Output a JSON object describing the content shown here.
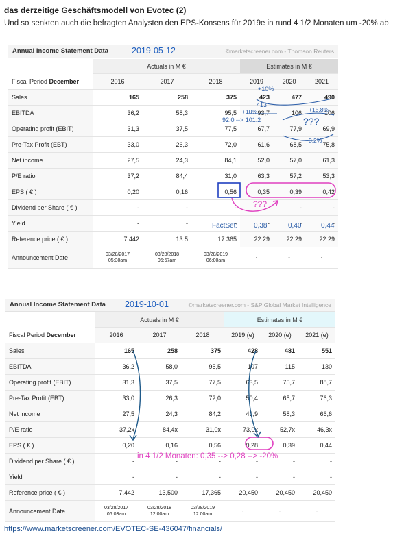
{
  "heading": "das derzeitige Geschäftsmodell von Evotec (2)",
  "intro": "Und so senkten auch die befragten Analysten den EPS-Konsens für 2019e in rund 4 1/2 Monaten um -20% ab",
  "footer_link": "https://www.marketscreener.com/EVOTEC-SE-436047/financials/",
  "panel1": {
    "title": "Annual Income Statement Data",
    "date": "2019-05-12",
    "source": "©marketscreener.com - Thomson Reuters",
    "actuals_header": "Actuals in M €",
    "estimates_header": "Estimates in M €",
    "fiscal_label": "Fiscal Period ",
    "fiscal_bold": "December",
    "years": [
      "2016",
      "2017",
      "2018",
      "2019",
      "2020",
      "2021"
    ],
    "rows": [
      {
        "label": "Sales",
        "values": [
          "165",
          "258",
          "375",
          "423",
          "477",
          "490"
        ]
      },
      {
        "label": "EBITDA",
        "values": [
          "36,2",
          "58,3",
          "95,5",
          "93,7",
          "106",
          "106"
        ]
      },
      {
        "label": "Operating profit (EBIT)",
        "values": [
          "31,3",
          "37,5",
          "77,5",
          "67,7",
          "77,9",
          "69,9"
        ]
      },
      {
        "label": "Pre-Tax Profit (EBT)",
        "values": [
          "33,0",
          "26,3",
          "72,0",
          "61,6",
          "68,5",
          "75,8"
        ]
      },
      {
        "label": "Net income",
        "values": [
          "27,5",
          "24,3",
          "84,1",
          "52,0",
          "57,0",
          "61,3"
        ]
      },
      {
        "label": "P/E ratio",
        "values": [
          "37,2",
          "84,4",
          "31,0",
          "63,3",
          "57,2",
          "53,3"
        ]
      },
      {
        "label": "EPS ( € )",
        "values": [
          "0,20",
          "0,16",
          "0,56",
          "0,35",
          "0,39",
          "0,42"
        ]
      },
      {
        "label": "Dividend per Share ( € )",
        "values": [
          "-",
          "-",
          "-",
          "-",
          "-",
          "-"
        ]
      },
      {
        "label": "Yield",
        "values": [
          "-",
          "-",
          "-",
          "-",
          "-",
          "-"
        ]
      },
      {
        "label": "Reference price ( € )",
        "values": [
          "7.442",
          "13.5",
          "17.365",
          "22.29",
          "22.29",
          "22.29"
        ]
      }
    ],
    "announcement_label": "Announcement Date",
    "announcement": [
      {
        "d": "03/28/2017",
        "t": "05:30am"
      },
      {
        "d": "03/28/2018",
        "t": "05:57am"
      },
      {
        "d": "03/28/2019",
        "t": "06:00am"
      },
      {
        "d": "-",
        "t": ""
      },
      {
        "d": "-",
        "t": ""
      },
      {
        "d": "-",
        "t": ""
      }
    ],
    "annotations": {
      "sales_pct": "+10%",
      "sales_alt": "413",
      "ebitda_pct": "+10%",
      "ebitda_change": "92.0 --> 101.2",
      "ebitda_pct_2021": "+15.8%",
      "ebit_question": "???",
      "ebt_pct": "+3.2%",
      "eps_question": "???",
      "factset_label": "FactSet:",
      "factset_values": [
        "0,38",
        "0,40",
        "0,44"
      ]
    }
  },
  "panel2": {
    "title": "Annual Income Statement Data",
    "date": "2019-10-01",
    "source": "©marketscreener.com - S&P Global Market Intelligence",
    "actuals_header": "Actuals in M €",
    "estimates_header": "Estimates in M €",
    "fiscal_label": "Fiscal Period ",
    "fiscal_bold": "December",
    "years": [
      "2016",
      "2017",
      "2018",
      "2019 (e)",
      "2020 (e)",
      "2021 (e)"
    ],
    "rows": [
      {
        "label": "Sales",
        "values": [
          "165",
          "258",
          "375",
          "428",
          "481",
          "551"
        ]
      },
      {
        "label": "EBITDA",
        "values": [
          "36,2",
          "58,0",
          "95,5",
          "107",
          "115",
          "130"
        ]
      },
      {
        "label": "Operating profit (EBIT)",
        "values": [
          "31,3",
          "37,5",
          "77,5",
          "63,5",
          "75,7",
          "88,7"
        ]
      },
      {
        "label": "Pre-Tax Profit (EBT)",
        "values": [
          "33,0",
          "26,3",
          "72,0",
          "50,4",
          "65,7",
          "76,3"
        ]
      },
      {
        "label": "Net income",
        "values": [
          "27,5",
          "24,3",
          "84,2",
          "41,9",
          "58,3",
          "66,6"
        ]
      },
      {
        "label": "P/E ratio",
        "values": [
          "37,2x",
          "84,4x",
          "31,0x",
          "73,0x",
          "52,7x",
          "46,3x"
        ]
      },
      {
        "label": "EPS ( € )",
        "values": [
          "0,20",
          "0,16",
          "0,56",
          "0,28",
          "0,39",
          "0,44"
        ]
      },
      {
        "label": "Dividend per Share ( € )",
        "values": [
          "-",
          "-",
          "-",
          "-",
          "-",
          "-"
        ]
      },
      {
        "label": "Yield",
        "values": [
          "-",
          "-",
          "-",
          "-",
          "-",
          "-"
        ]
      },
      {
        "label": "Reference price ( € )",
        "values": [
          "7,442",
          "13,500",
          "17,365",
          "20,450",
          "20,450",
          "20,450"
        ]
      }
    ],
    "announcement_label": "Announcement Date",
    "announcement": [
      {
        "d": "03/28/2017",
        "t": "06:03am"
      },
      {
        "d": "03/28/2018",
        "t": "12:00am"
      },
      {
        "d": "03/28/2019",
        "t": "12:00am"
      },
      {
        "d": "-",
        "t": ""
      },
      {
        "d": "-",
        "t": ""
      },
      {
        "d": "-",
        "t": ""
      }
    ],
    "annotations": {
      "note": "in 4 1/2 Monaten: 0,35 --> 0,28 --> -20%"
    }
  },
  "colors": {
    "annotation_blue": "#2b5da8",
    "annotation_magenta": "#e040c0",
    "estimates_header_p1": "#dadada",
    "estimates_header_p2": "#e3f7fb",
    "link": "#1a4d8f"
  }
}
